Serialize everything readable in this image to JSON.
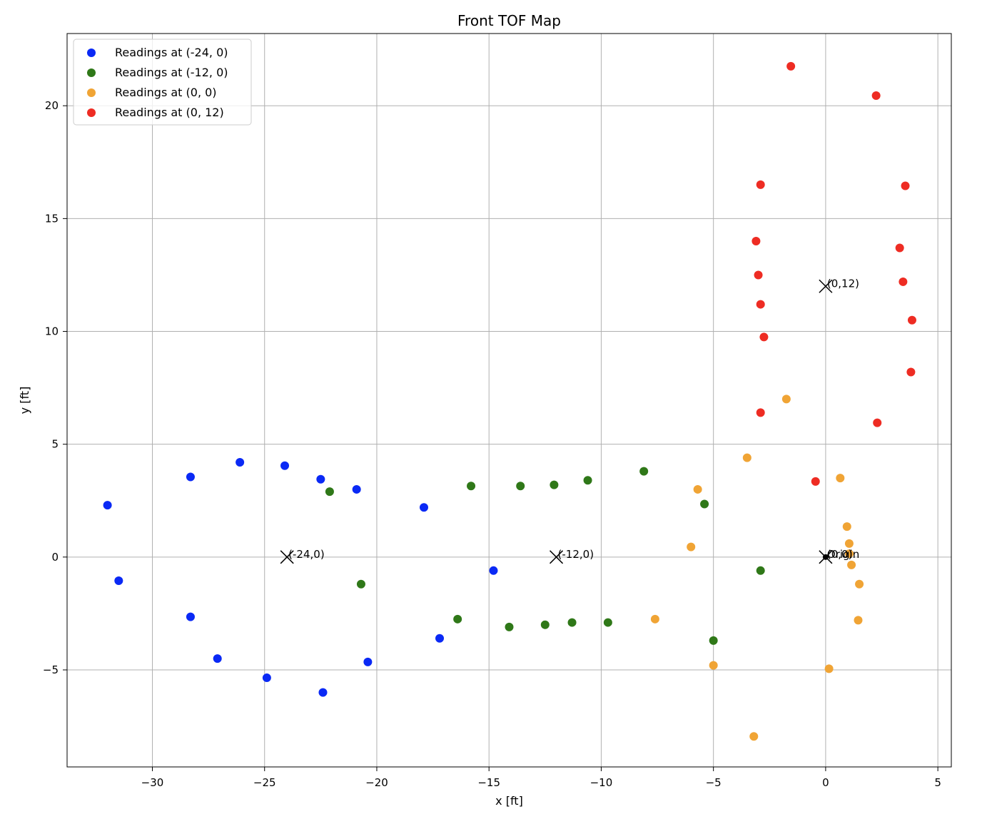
{
  "chart_data": {
    "type": "scatter",
    "title": "Front TOF Map",
    "xlabel": "x [ft]",
    "ylabel": "y [ft]",
    "xlim": [
      -33.8,
      5.6
    ],
    "ylim": [
      -9.3,
      23.2
    ],
    "xticks": [
      -30,
      -25,
      -20,
      -15,
      -10,
      -5,
      0,
      5
    ],
    "xtick_labels": [
      "−30",
      "−25",
      "−20",
      "−15",
      "−10",
      "−5",
      "0",
      "5"
    ],
    "yticks": [
      -5,
      0,
      5,
      10,
      15,
      20
    ],
    "ytick_labels": [
      "−5",
      "0",
      "5",
      "10",
      "15",
      "20"
    ],
    "grid": true,
    "legend_position": "top-left",
    "series": [
      {
        "name": "Readings at (-24, 0)",
        "color": "#0a29f5",
        "points": [
          [
            -32.0,
            2.3
          ],
          [
            -31.5,
            -1.05
          ],
          [
            -28.3,
            3.55
          ],
          [
            -28.3,
            -2.65
          ],
          [
            -27.1,
            -4.5
          ],
          [
            -26.1,
            4.2
          ],
          [
            -24.9,
            -5.35
          ],
          [
            -24.1,
            4.05
          ],
          [
            -22.5,
            3.45
          ],
          [
            -22.4,
            -6.0
          ],
          [
            -20.9,
            3.0
          ],
          [
            -20.4,
            -4.65
          ],
          [
            -17.9,
            2.2
          ],
          [
            -17.2,
            -3.6
          ],
          [
            -14.8,
            -0.6
          ]
        ]
      },
      {
        "name": "Readings at (-12, 0)",
        "color": "#2f7818",
        "points": [
          [
            -22.1,
            2.9
          ],
          [
            -20.7,
            -1.2
          ],
          [
            -16.4,
            -2.75
          ],
          [
            -15.8,
            3.15
          ],
          [
            -14.1,
            -3.1
          ],
          [
            -13.6,
            3.15
          ],
          [
            -12.5,
            -3.0
          ],
          [
            -12.1,
            3.2
          ],
          [
            -11.3,
            -2.9
          ],
          [
            -10.6,
            3.4
          ],
          [
            -9.7,
            -2.9
          ],
          [
            -8.1,
            3.8
          ],
          [
            -5.4,
            2.35
          ],
          [
            -5.0,
            -3.7
          ],
          [
            -2.9,
            -0.6
          ]
        ]
      },
      {
        "name": "Readings at (0, 0)",
        "color": "#f0a435",
        "points": [
          [
            -7.6,
            -2.75
          ],
          [
            -6.0,
            0.45
          ],
          [
            -5.7,
            3.0
          ],
          [
            -5.0,
            -4.8
          ],
          [
            -3.5,
            4.4
          ],
          [
            -3.2,
            -7.95
          ],
          [
            -1.75,
            7.0
          ],
          [
            0.15,
            -4.95
          ],
          [
            0.65,
            3.5
          ],
          [
            0.95,
            1.35
          ],
          [
            1.05,
            0.6
          ],
          [
            1.15,
            -0.35
          ],
          [
            1.45,
            -2.8
          ],
          [
            1.5,
            -1.2
          ],
          [
            1.05,
            0.15
          ]
        ]
      },
      {
        "name": "Readings at (0, 12)",
        "color": "#ee2c23",
        "points": [
          [
            -1.55,
            21.75
          ],
          [
            2.25,
            20.45
          ],
          [
            -2.9,
            16.5
          ],
          [
            3.55,
            16.45
          ],
          [
            -3.1,
            14.0
          ],
          [
            3.3,
            13.7
          ],
          [
            -3.0,
            12.5
          ],
          [
            3.45,
            12.2
          ],
          [
            -2.9,
            11.2
          ],
          [
            3.85,
            10.5
          ],
          [
            -2.75,
            9.75
          ],
          [
            3.8,
            8.2
          ],
          [
            -2.9,
            6.4
          ],
          [
            2.3,
            5.95
          ],
          [
            -0.45,
            3.35
          ]
        ]
      }
    ],
    "markers": [
      {
        "label": "(-24,0)",
        "x": -24,
        "y": 0
      },
      {
        "label": "(-12,0)",
        "x": -12,
        "y": 0
      },
      {
        "label": "(0,0)",
        "x": 0,
        "y": 0
      },
      {
        "label": "(0,12)",
        "x": 0,
        "y": 12
      }
    ],
    "origin": {
      "label": "Origin",
      "x": 0,
      "y": 0
    }
  }
}
